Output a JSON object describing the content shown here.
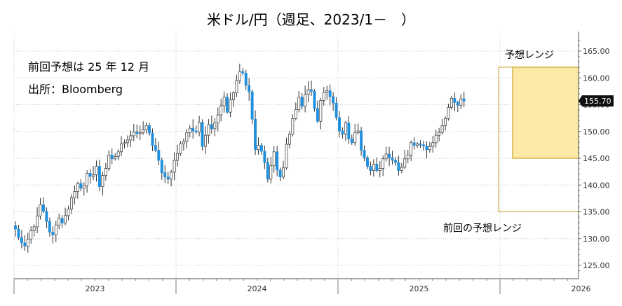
{
  "chart_data": {
    "type": "candlestick",
    "title": "米ドル/円（週足、2023/1－　）",
    "notes": [
      "前回予想は 25 年 12 月",
      "出所：Bloomberg"
    ],
    "yticks": [
      125,
      130,
      135,
      140,
      145,
      150,
      155,
      160,
      165
    ],
    "ytick_labels": [
      "125.00",
      "130.00",
      "135.00",
      "140.00",
      "145.00",
      "150.00",
      "155.00",
      "160.00",
      "165.00"
    ],
    "ylim": [
      123,
      170
    ],
    "xlim": [
      2023.0,
      2026.5
    ],
    "year_labels": [
      "2023",
      "2024",
      "2025",
      "2026"
    ],
    "last_value": 155.7,
    "last_value_label": "155.70",
    "up_color": "#ffffff",
    "down_color": "#1f8fde",
    "range_current": {
      "label": "予想レンジ",
      "low": 145,
      "high": 162
    },
    "range_previous": {
      "label": "前回の予想レンジ",
      "low": 135,
      "high": 162
    },
    "weekly_close": [
      131.8,
      130.2,
      129.2,
      128.6,
      129.9,
      131.5,
      132.2,
      134.2,
      136.3,
      135.1,
      133.2,
      131.2,
      130.7,
      132.5,
      133.8,
      132.9,
      134.3,
      135.5,
      137.6,
      138.8,
      140.3,
      139.4,
      139.9,
      142.2,
      141.6,
      141.9,
      143.5,
      139.7,
      141.8,
      143.1,
      145.6,
      144.9,
      145.3,
      146.2,
      147.7,
      147.9,
      148.4,
      149.2,
      149.9,
      149.6,
      149.8,
      150.3,
      151.1,
      149.7,
      147.4,
      146.5,
      144.6,
      142.3,
      141.5,
      141.1,
      142.4,
      144.6,
      145.9,
      147.7,
      148.1,
      149.8,
      150.6,
      150.1,
      149.9,
      151.7,
      147.2,
      149.3,
      151.3,
      150.5,
      151.6,
      153.1,
      154.8,
      156.4,
      153.6,
      155.9,
      157.2,
      159.5,
      161.2,
      160.9,
      158.6,
      157.4,
      152.3,
      146.6,
      147.4,
      146.3,
      144.2,
      141.1,
      143.6,
      146.2,
      142.8,
      141.5,
      143.2,
      147.6,
      149.5,
      152.4,
      154.1,
      156.4,
      154.7,
      156.9,
      157.8,
      157.5,
      154.3,
      151.9,
      155.8,
      157.3,
      157.6,
      156.5,
      155.3,
      152.6,
      150.1,
      149.5,
      151.6,
      148.6,
      147.9,
      149.8,
      150.1,
      146.5,
      145.1,
      143.5,
      142.7,
      143.9,
      142.7,
      143.1,
      144.9,
      145.8,
      145.1,
      144.6,
      144.2,
      142.7,
      143.3,
      144.9,
      145.6,
      147.9,
      147.4,
      147.7,
      147.5,
      147.3,
      146.6,
      147.2,
      147.9,
      149.3,
      149.8,
      151.1,
      152.4,
      154.5,
      156.2,
      155.4,
      154.9,
      156.1,
      155.7
    ],
    "weekly_close_unit": "円 per USD"
  }
}
